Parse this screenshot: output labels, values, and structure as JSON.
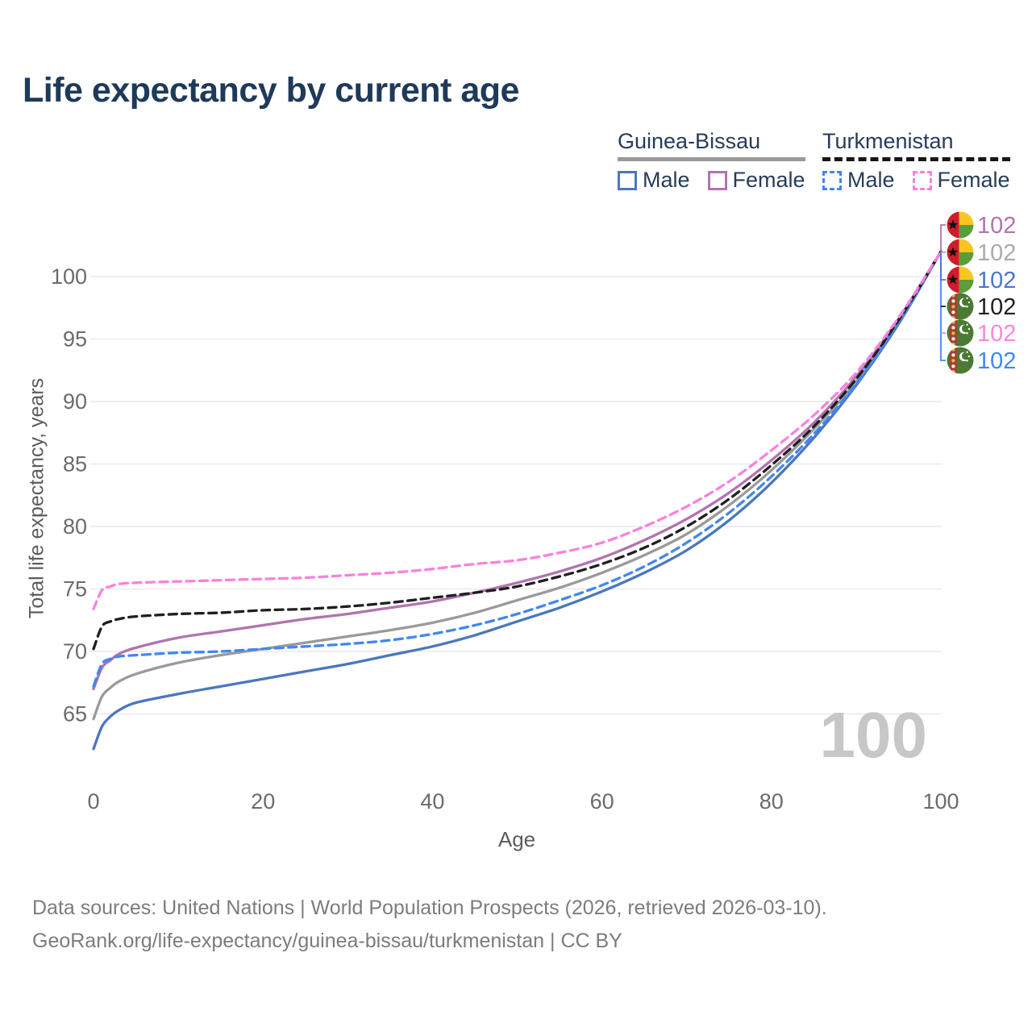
{
  "title": "Life expectancy by current age",
  "legend": {
    "groups": [
      {
        "country": "Guinea-Bissau",
        "line_style": "solid",
        "items": [
          {
            "label": "Male",
            "color": "#4a77bd",
            "dash": false
          },
          {
            "label": "Female",
            "color": "#b173ae",
            "dash": false
          }
        ]
      },
      {
        "country": "Turkmenistan",
        "line_style": "dashed",
        "items": [
          {
            "label": "Male",
            "color": "#4187f2",
            "dash": true
          },
          {
            "label": "Female",
            "color": "#fb81dd",
            "dash": true
          }
        ]
      }
    ]
  },
  "chart_data": {
    "type": "line",
    "title": "Life expectancy by current age",
    "xlabel": "Age",
    "ylabel": "Total life expectancy, years",
    "grid": "horizontal",
    "xlim": [
      0,
      100
    ],
    "ylim_visible": [
      61.5,
      103
    ],
    "xticks": [
      0,
      20,
      40,
      60,
      80,
      100
    ],
    "yticks": [
      65,
      70,
      75,
      80,
      85,
      90,
      95,
      100
    ],
    "x": [
      0,
      1,
      2,
      3,
      5,
      10,
      15,
      20,
      25,
      30,
      35,
      40,
      45,
      50,
      55,
      60,
      65,
      70,
      75,
      80,
      85,
      90,
      95,
      100
    ],
    "series": [
      {
        "id": "guinea-bissau-male",
        "name": "Guinea-Bissau Male",
        "color": "#4a77bd",
        "dash": false,
        "values": [
          62.2,
          64.0,
          64.8,
          65.3,
          65.9,
          66.6,
          67.2,
          67.8,
          68.4,
          69.0,
          69.7,
          70.4,
          71.3,
          72.4,
          73.5,
          74.8,
          76.3,
          78.1,
          80.5,
          83.5,
          87.1,
          91.3,
          96.2,
          102
        ]
      },
      {
        "id": "guinea-bissau-total",
        "name": "Guinea-Bissau Both sexes",
        "color": "#9a9a9a",
        "dash": false,
        "values": [
          64.6,
          66.4,
          67.1,
          67.6,
          68.2,
          69.1,
          69.7,
          70.2,
          70.7,
          71.2,
          71.7,
          72.3,
          73.1,
          74.1,
          75.1,
          76.3,
          77.7,
          79.4,
          81.7,
          84.5,
          87.8,
          91.6,
          96.4,
          102
        ]
      },
      {
        "id": "guinea-bissau-female",
        "name": "Guinea-Bissau Female",
        "color": "#b173ae",
        "dash": false,
        "values": [
          67.0,
          68.7,
          69.3,
          69.8,
          70.3,
          71.1,
          71.6,
          72.1,
          72.6,
          73.0,
          73.5,
          74.0,
          74.7,
          75.5,
          76.4,
          77.5,
          78.9,
          80.6,
          82.7,
          85.3,
          88.3,
          92.0,
          96.6,
          102
        ]
      },
      {
        "id": "turkmenistan-male",
        "name": "Turkmenistan Male",
        "color": "#4187f2",
        "dash": true,
        "values": [
          67.2,
          69.0,
          69.4,
          69.6,
          69.7,
          69.9,
          70.0,
          70.2,
          70.4,
          70.6,
          70.9,
          71.4,
          72.1,
          73.0,
          74.1,
          75.3,
          76.8,
          78.7,
          81.1,
          84.0,
          87.4,
          91.4,
          96.3,
          102
        ]
      },
      {
        "id": "turkmenistan-total",
        "name": "Turkmenistan Both sexes",
        "color": "#1f1f1f",
        "dash": true,
        "values": [
          70.2,
          72.0,
          72.4,
          72.6,
          72.8,
          73.0,
          73.1,
          73.3,
          73.4,
          73.6,
          73.9,
          74.3,
          74.7,
          75.2,
          76.0,
          77.0,
          78.3,
          80.0,
          82.2,
          84.9,
          88.0,
          91.8,
          96.5,
          102
        ]
      },
      {
        "id": "turkmenistan-female",
        "name": "Turkmenistan Female",
        "color": "#fb81dd",
        "dash": true,
        "values": [
          73.4,
          74.9,
          75.2,
          75.4,
          75.5,
          75.6,
          75.7,
          75.8,
          75.9,
          76.1,
          76.3,
          76.6,
          77.0,
          77.3,
          77.9,
          78.7,
          80.0,
          81.6,
          83.6,
          86.1,
          88.9,
          92.3,
          96.7,
          102
        ]
      }
    ],
    "end_labels": [
      {
        "flag": "guinea-bissau",
        "value": "102",
        "color": "#b173ae"
      },
      {
        "flag": "guinea-bissau",
        "value": "102",
        "color": "#ababab"
      },
      {
        "flag": "guinea-bissau",
        "value": "102",
        "color": "#4a77c9"
      },
      {
        "flag": "turkmenistan",
        "value": "102",
        "color": "#1f1f1f"
      },
      {
        "flag": "turkmenistan",
        "value": "102",
        "color": "#ff85dd"
      },
      {
        "flag": "turkmenistan",
        "value": "102",
        "color": "#4187f2"
      }
    ]
  },
  "age_counter": "100",
  "footer": {
    "line1": "Data sources: United Nations | World Population Prospects (2026, retrieved 2026-03-10).",
    "line2": "GeoRank.org/life-expectancy/guinea-bissau/turkmenistan | CC BY"
  }
}
